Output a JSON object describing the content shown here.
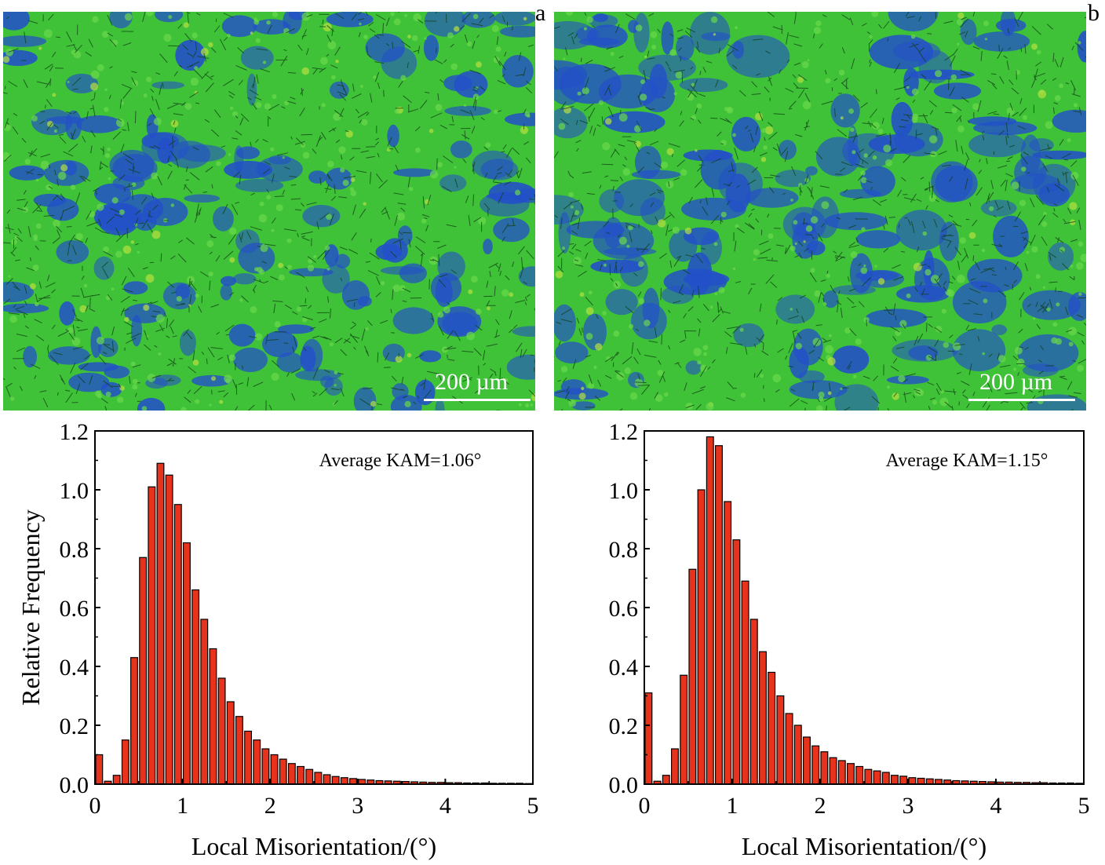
{
  "figure": {
    "panels": [
      {
        "letter": "a",
        "scale_bar_label": "200 µm"
      },
      {
        "letter": "b",
        "scale_bar_label": "200 µm"
      }
    ],
    "colors": {
      "map_green": "#3fc238",
      "map_blue": "#2350c8",
      "map_dark": "#123d14",
      "bar_fill": "#e8331c",
      "bar_stroke": "#000000"
    }
  },
  "chart_data": [
    {
      "type": "bar",
      "ylabel": "Relative Frequency",
      "xlabel": "Local Misorientation/(°)",
      "annotation": "Average KAM=1.06°",
      "xlim": [
        0,
        5
      ],
      "ylim": [
        0,
        1.2
      ],
      "xticks": [
        "0",
        "1",
        "2",
        "3",
        "4",
        "5"
      ],
      "yticks": [
        "0.0",
        "0.2",
        "0.4",
        "0.6",
        "0.8",
        "1.0",
        "1.2"
      ],
      "bin_width": 0.1,
      "x": [
        0.0,
        0.1,
        0.2,
        0.3,
        0.4,
        0.5,
        0.6,
        0.7,
        0.8,
        0.9,
        1.0,
        1.1,
        1.2,
        1.3,
        1.4,
        1.5,
        1.6,
        1.7,
        1.8,
        1.9,
        2.0,
        2.1,
        2.2,
        2.3,
        2.4,
        2.5,
        2.6,
        2.7,
        2.8,
        2.9,
        3.0,
        3.1,
        3.2,
        3.3,
        3.4,
        3.5,
        3.6,
        3.7,
        3.8,
        3.9,
        4.0,
        4.1,
        4.2,
        4.3,
        4.4,
        4.5,
        4.6,
        4.7,
        4.8,
        4.9
      ],
      "values": [
        0.1,
        0.01,
        0.03,
        0.15,
        0.43,
        0.77,
        1.01,
        1.09,
        1.05,
        0.95,
        0.82,
        0.66,
        0.56,
        0.46,
        0.36,
        0.28,
        0.23,
        0.18,
        0.15,
        0.12,
        0.1,
        0.085,
        0.07,
        0.06,
        0.05,
        0.04,
        0.032,
        0.026,
        0.022,
        0.019,
        0.016,
        0.014,
        0.012,
        0.011,
        0.01,
        0.009,
        0.008,
        0.007,
        0.006,
        0.006,
        0.005,
        0.005,
        0.004,
        0.004,
        0.004,
        0.003,
        0.003,
        0.003,
        0.003,
        0.002
      ]
    },
    {
      "type": "bar",
      "ylabel": "",
      "xlabel": "Local Misorientation/(°)",
      "annotation": "Average KAM=1.15°",
      "xlim": [
        0,
        5
      ],
      "ylim": [
        0,
        1.2
      ],
      "xticks": [
        "0",
        "1",
        "2",
        "3",
        "4",
        "5"
      ],
      "yticks": [
        "0.0",
        "0.2",
        "0.4",
        "0.6",
        "0.8",
        "1.0",
        "1.2"
      ],
      "bin_width": 0.1,
      "x": [
        0.0,
        0.1,
        0.2,
        0.3,
        0.4,
        0.5,
        0.6,
        0.7,
        0.8,
        0.9,
        1.0,
        1.1,
        1.2,
        1.3,
        1.4,
        1.5,
        1.6,
        1.7,
        1.8,
        1.9,
        2.0,
        2.1,
        2.2,
        2.3,
        2.4,
        2.5,
        2.6,
        2.7,
        2.8,
        2.9,
        3.0,
        3.1,
        3.2,
        3.3,
        3.4,
        3.5,
        3.6,
        3.7,
        3.8,
        3.9,
        4.0,
        4.1,
        4.2,
        4.3,
        4.4,
        4.5,
        4.6,
        4.7,
        4.8,
        4.9
      ],
      "values": [
        0.31,
        0.01,
        0.03,
        0.12,
        0.37,
        0.73,
        1.0,
        1.18,
        1.15,
        0.96,
        0.83,
        0.69,
        0.56,
        0.45,
        0.38,
        0.3,
        0.24,
        0.2,
        0.16,
        0.13,
        0.11,
        0.09,
        0.08,
        0.07,
        0.06,
        0.05,
        0.045,
        0.04,
        0.03,
        0.027,
        0.022,
        0.02,
        0.018,
        0.016,
        0.014,
        0.012,
        0.011,
        0.01,
        0.009,
        0.008,
        0.007,
        0.007,
        0.006,
        0.006,
        0.005,
        0.005,
        0.004,
        0.004,
        0.004,
        0.003
      ]
    }
  ]
}
